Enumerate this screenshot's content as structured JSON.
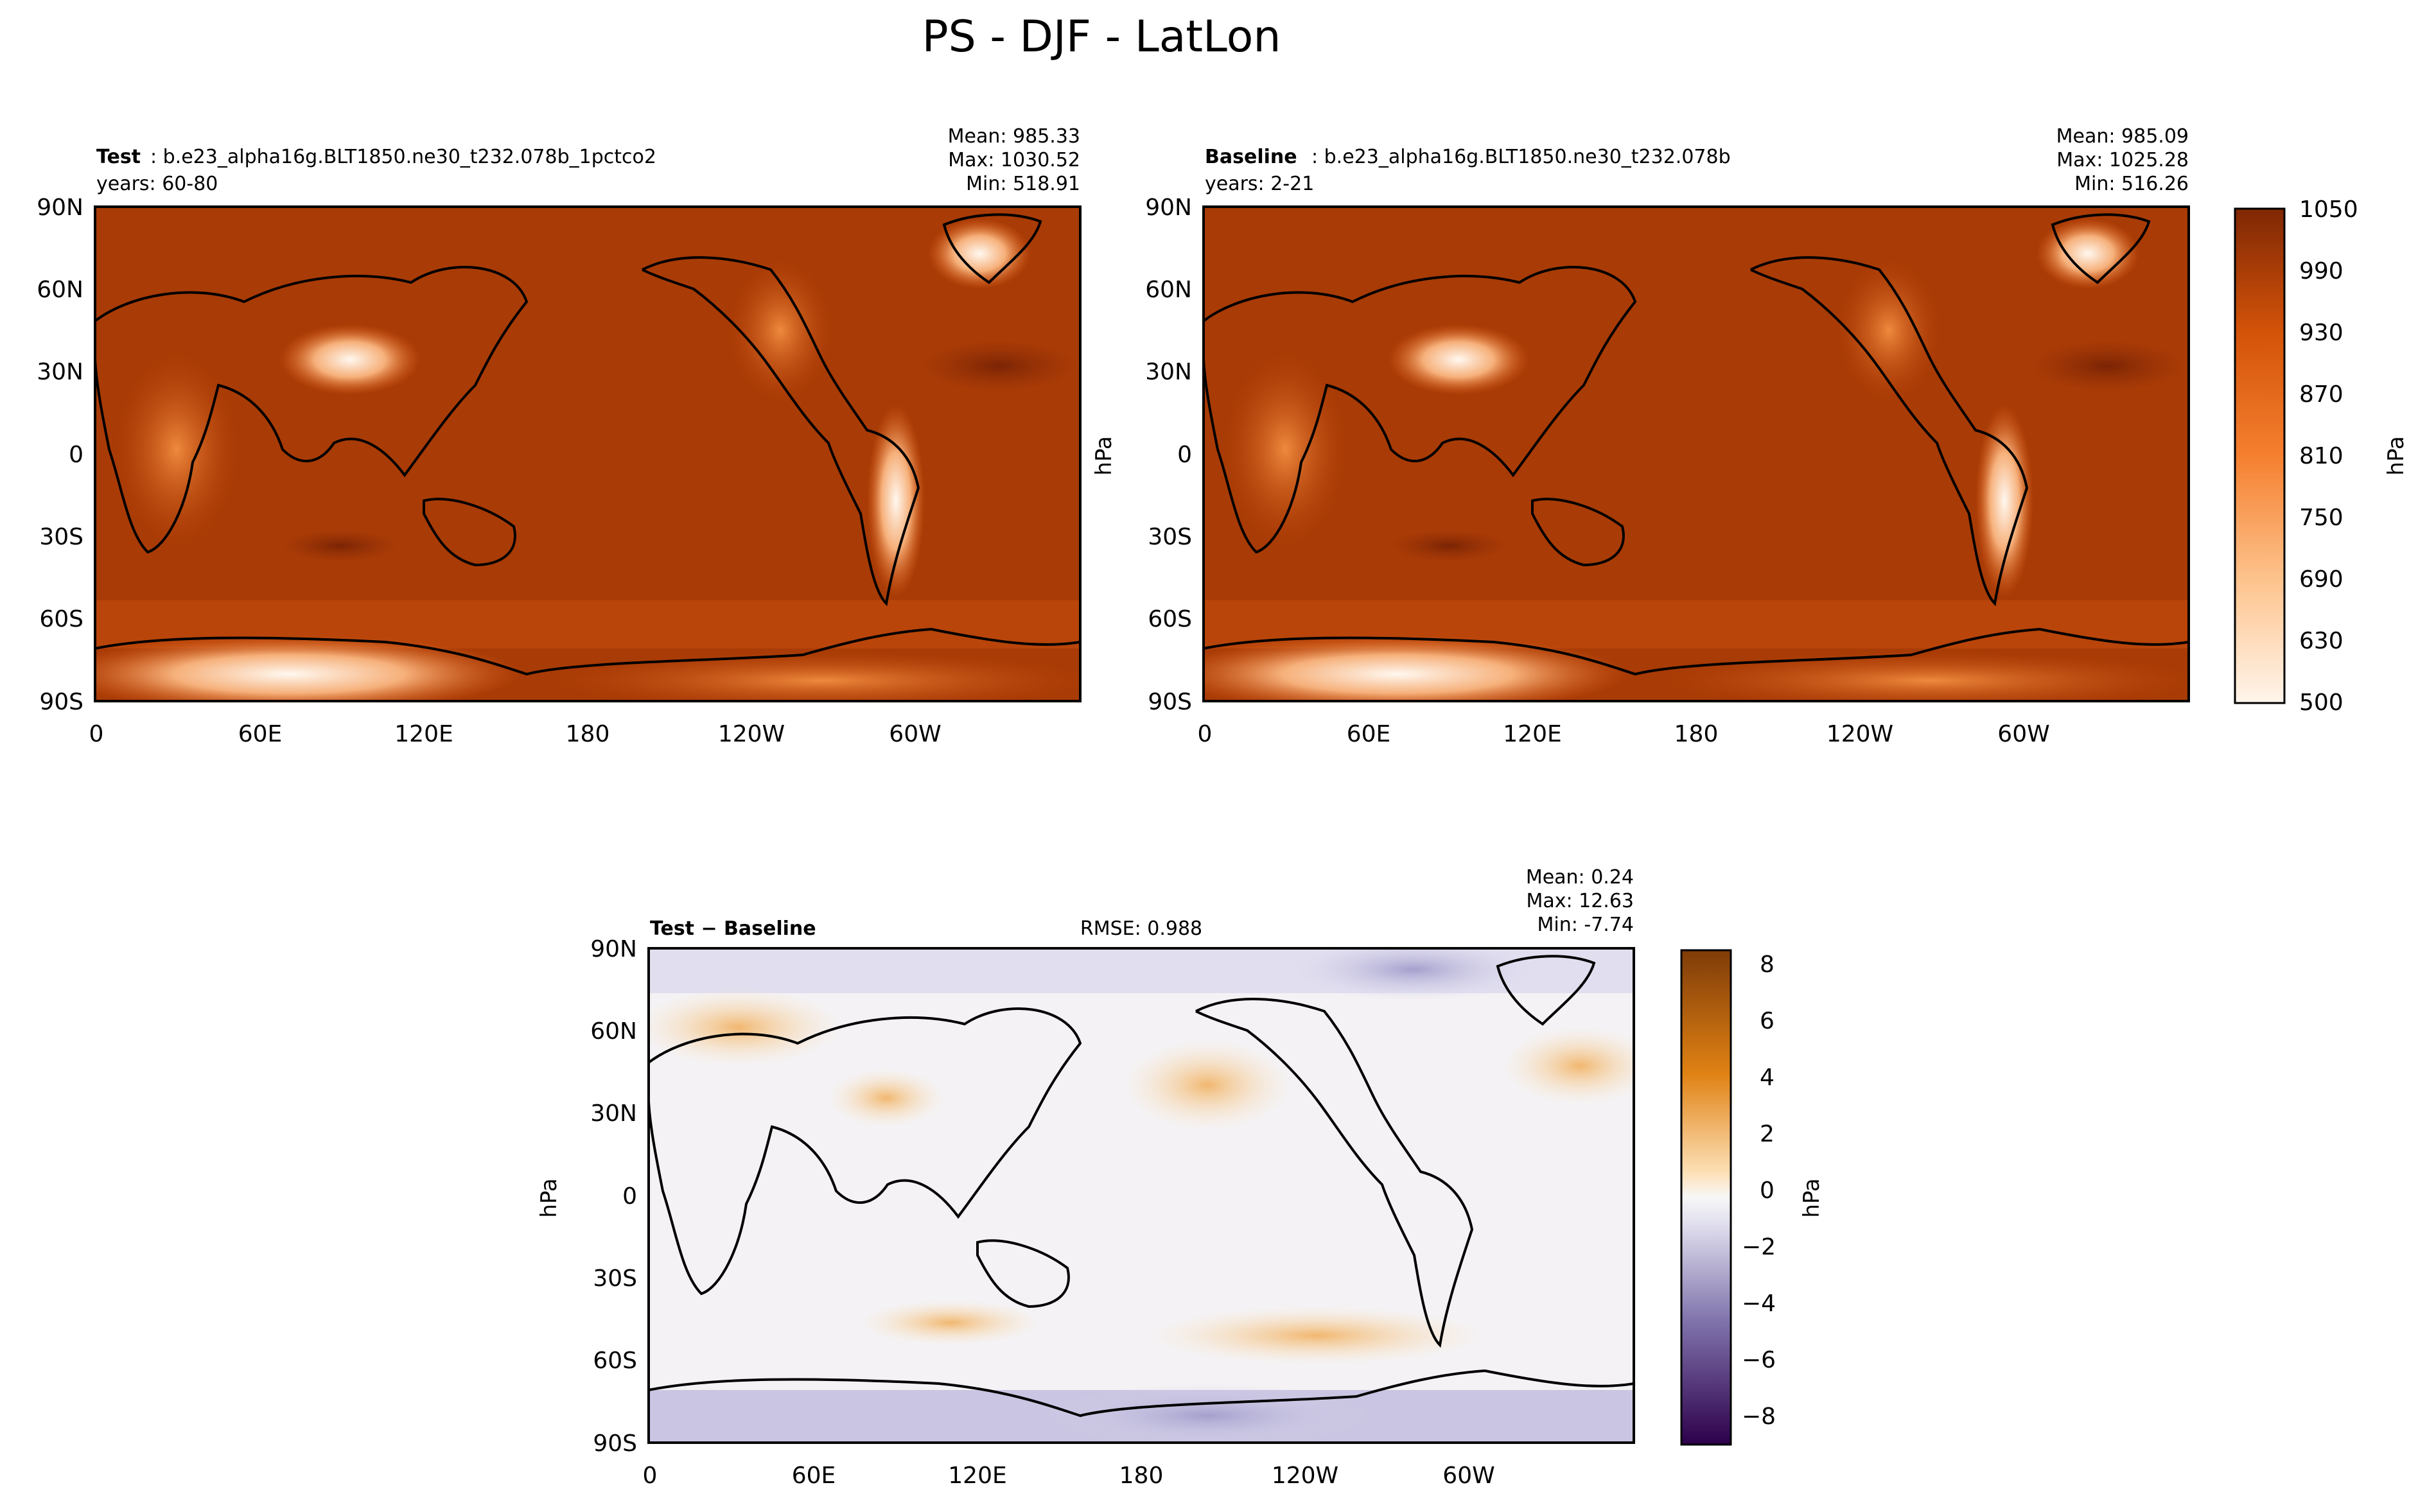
{
  "figure_title": "PS - DJF - LatLon",
  "panels": {
    "test": {
      "label": "Test",
      "case": ": b.e23_alpha16g.BLT1850.ne30_t232.078b_1pctco2",
      "years": "years: 60-80",
      "mean": "Mean: 985.33",
      "max": "Max: 1030.52",
      "min": "Min: 518.91",
      "ylabel": "hPa"
    },
    "baseline": {
      "label": "Baseline",
      "case": ": b.e23_alpha16g.BLT1850.ne30_t232.078b",
      "years": "years: 2-21",
      "mean": "Mean: 985.09",
      "max": "Max: 1025.28",
      "min": "Min: 516.26"
    },
    "diff": {
      "label": "Test − Baseline",
      "rmse": "RMSE: 0.988",
      "mean": "Mean:  0.24",
      "max": "Max: 12.63",
      "min": "Min: -7.74",
      "ylabel": "hPa"
    }
  },
  "axes": {
    "lat_ticks": [
      "90N",
      "60N",
      "30N",
      "0",
      "30S",
      "60S",
      "90S"
    ],
    "lon_ticks": [
      "0",
      "60E",
      "120E",
      "180",
      "120W",
      "60W"
    ]
  },
  "colorbars": {
    "main": {
      "label": "hPa",
      "ticks": [
        "1050",
        "990",
        "930",
        "870",
        "810",
        "750",
        "690",
        "630",
        "500"
      ],
      "colormap": "Oranges"
    },
    "diff": {
      "label": "hPa",
      "ticks": [
        "8",
        "6",
        "4",
        "2",
        "0",
        "−2",
        "−4",
        "−6",
        "−8"
      ],
      "colormap": "PuOr_r"
    }
  },
  "chart_data": [
    {
      "type": "heatmap",
      "title": "Test",
      "x_ticks": [
        "0",
        "60E",
        "120E",
        "180",
        "120W",
        "60W"
      ],
      "y_ticks": [
        "90N",
        "60N",
        "30N",
        "0",
        "30S",
        "60S",
        "90S"
      ],
      "xlim": [
        0,
        360
      ],
      "ylim": [
        -90,
        90
      ],
      "stats": {
        "mean": 985.33,
        "max": 1030.52,
        "min": 518.91
      },
      "color_range": [
        500,
        1050
      ],
      "unit": "hPa"
    },
    {
      "type": "heatmap",
      "title": "Baseline",
      "x_ticks": [
        "0",
        "60E",
        "120E",
        "180",
        "120W",
        "60W"
      ],
      "y_ticks": [
        "90N",
        "60N",
        "30N",
        "0",
        "30S",
        "60S",
        "90S"
      ],
      "xlim": [
        0,
        360
      ],
      "ylim": [
        -90,
        90
      ],
      "stats": {
        "mean": 985.09,
        "max": 1025.28,
        "min": 516.26
      },
      "color_range": [
        500,
        1050
      ],
      "unit": "hPa"
    },
    {
      "type": "heatmap",
      "title": "Test − Baseline",
      "x_ticks": [
        "0",
        "60E",
        "120E",
        "180",
        "120W",
        "60W"
      ],
      "y_ticks": [
        "90N",
        "60N",
        "30N",
        "0",
        "30S",
        "60S",
        "90S"
      ],
      "xlim": [
        0,
        360
      ],
      "ylim": [
        -90,
        90
      ],
      "stats": {
        "mean": 0.24,
        "max": 12.63,
        "min": -7.74,
        "rmse": 0.988
      },
      "color_range": [
        -9,
        9
      ],
      "unit": "hPa"
    }
  ]
}
